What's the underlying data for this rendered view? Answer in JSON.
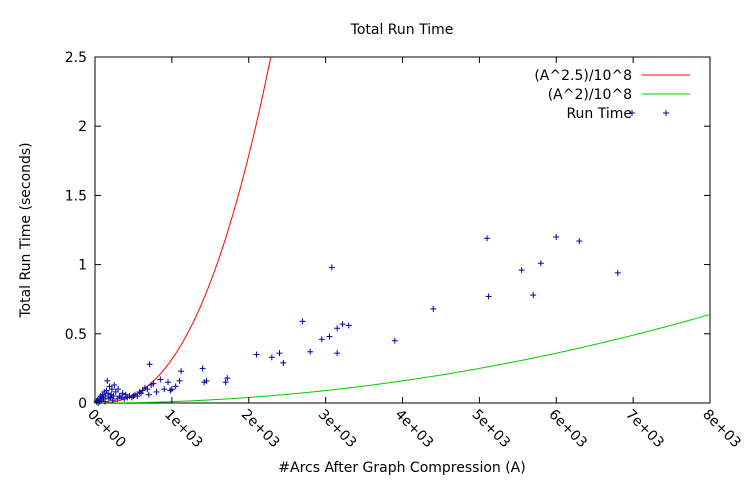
{
  "chart_data": {
    "type": "scatter",
    "title": "Total Run Time",
    "xlabel": "#Arcs After Graph Compression (A)",
    "ylabel": "Total Run Time (seconds)",
    "xlim": [
      0,
      8000
    ],
    "ylim": [
      0,
      2.5
    ],
    "x_ticks": [
      0,
      1000,
      2000,
      3000,
      4000,
      5000,
      6000,
      7000,
      8000
    ],
    "x_tick_labels": [
      "0e+00",
      "1e+03",
      "2e+03",
      "3e+03",
      "4e+03",
      "5e+03",
      "6e+03",
      "7e+03",
      "8e+03"
    ],
    "y_ticks": [
      0,
      0.5,
      1,
      1.5,
      2,
      2.5
    ],
    "y_tick_labels": [
      "0",
      "0.5",
      "1",
      "1.5",
      "2",
      "2.5"
    ],
    "grid": false,
    "legend_position": "top-right",
    "series": [
      {
        "name": "(A^2.5)/10^8",
        "kind": "curve",
        "exponent": 2.5,
        "divisor": 100000000,
        "color": "#ff0000"
      },
      {
        "name": "(A^2)/10^8",
        "kind": "curve",
        "exponent": 2,
        "divisor": 100000000,
        "color": "#00cc00"
      },
      {
        "name": "Run Time",
        "kind": "points",
        "marker": "+",
        "color": "#0000aa",
        "points": [
          [
            20,
            0.01
          ],
          [
            30,
            0.02
          ],
          [
            40,
            0.0
          ],
          [
            50,
            0.03
          ],
          [
            60,
            0.01
          ],
          [
            70,
            0.05
          ],
          [
            80,
            0.02
          ],
          [
            90,
            0.04
          ],
          [
            100,
            0.06
          ],
          [
            110,
            0.03
          ],
          [
            120,
            0.08
          ],
          [
            130,
            0.01
          ],
          [
            140,
            0.05
          ],
          [
            150,
            0.09
          ],
          [
            160,
            0.16
          ],
          [
            170,
            0.07
          ],
          [
            180,
            0.03
          ],
          [
            190,
            0.12
          ],
          [
            200,
            0.04
          ],
          [
            210,
            0.06
          ],
          [
            220,
            0.1
          ],
          [
            230,
            0.02
          ],
          [
            240,
            0.05
          ],
          [
            250,
            0.13
          ],
          [
            270,
            0.08
          ],
          [
            290,
            0.03
          ],
          [
            300,
            0.1
          ],
          [
            320,
            0.05
          ],
          [
            340,
            0.04
          ],
          [
            360,
            0.07
          ],
          [
            380,
            0.03
          ],
          [
            400,
            0.06
          ],
          [
            420,
            0.04
          ],
          [
            450,
            0.05
          ],
          [
            480,
            0.04
          ],
          [
            500,
            0.05
          ],
          [
            520,
            0.06
          ],
          [
            550,
            0.05
          ],
          [
            580,
            0.08
          ],
          [
            600,
            0.07
          ],
          [
            620,
            0.09
          ],
          [
            650,
            0.11
          ],
          [
            680,
            0.1
          ],
          [
            700,
            0.06
          ],
          [
            710,
            0.28
          ],
          [
            730,
            0.13
          ],
          [
            760,
            0.14
          ],
          [
            800,
            0.08
          ],
          [
            850,
            0.17
          ],
          [
            900,
            0.1
          ],
          [
            950,
            0.15
          ],
          [
            980,
            0.09
          ],
          [
            1000,
            0.1
          ],
          [
            1050,
            0.12
          ],
          [
            1100,
            0.16
          ],
          [
            1120,
            0.23
          ],
          [
            1400,
            0.25
          ],
          [
            1420,
            0.15
          ],
          [
            1450,
            0.16
          ],
          [
            1700,
            0.15
          ],
          [
            1720,
            0.18
          ],
          [
            2100,
            0.35
          ],
          [
            2300,
            0.33
          ],
          [
            2400,
            0.36
          ],
          [
            2450,
            0.29
          ],
          [
            2700,
            0.59
          ],
          [
            2800,
            0.37
          ],
          [
            2950,
            0.46
          ],
          [
            3050,
            0.48
          ],
          [
            3080,
            0.98
          ],
          [
            3150,
            0.36
          ],
          [
            3150,
            0.54
          ],
          [
            3220,
            0.57
          ],
          [
            3300,
            0.56
          ],
          [
            3900,
            0.45
          ],
          [
            4400,
            0.68
          ],
          [
            5100,
            1.19
          ],
          [
            5120,
            0.77
          ],
          [
            5550,
            0.96
          ],
          [
            5700,
            0.78
          ],
          [
            5800,
            1.01
          ],
          [
            6000,
            1.2
          ],
          [
            6300,
            1.17
          ],
          [
            6800,
            0.94
          ]
        ]
      }
    ]
  }
}
